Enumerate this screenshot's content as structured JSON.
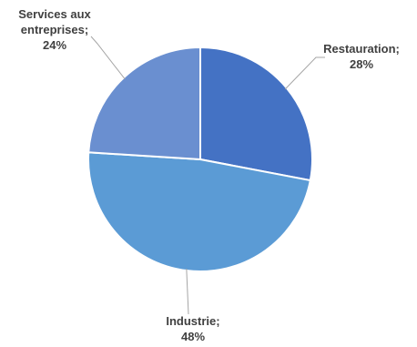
{
  "chart_data": {
    "type": "pie",
    "title": "",
    "start": "12 o'clock",
    "direction": "clockwise",
    "legend": "none",
    "slices": [
      {
        "name": "Restauration",
        "value": 28,
        "color": "#4472C4",
        "label_lines": [
          "Restauration;",
          "28%"
        ]
      },
      {
        "name": "Industrie",
        "value": 48,
        "color": "#5B9BD5",
        "label_lines": [
          "Industrie;",
          "48%"
        ]
      },
      {
        "name": "Services aux entreprises",
        "value": 24,
        "color": "#6A8FD0",
        "label_lines": [
          "Services aux",
          "entreprises;",
          "24%"
        ]
      }
    ]
  }
}
